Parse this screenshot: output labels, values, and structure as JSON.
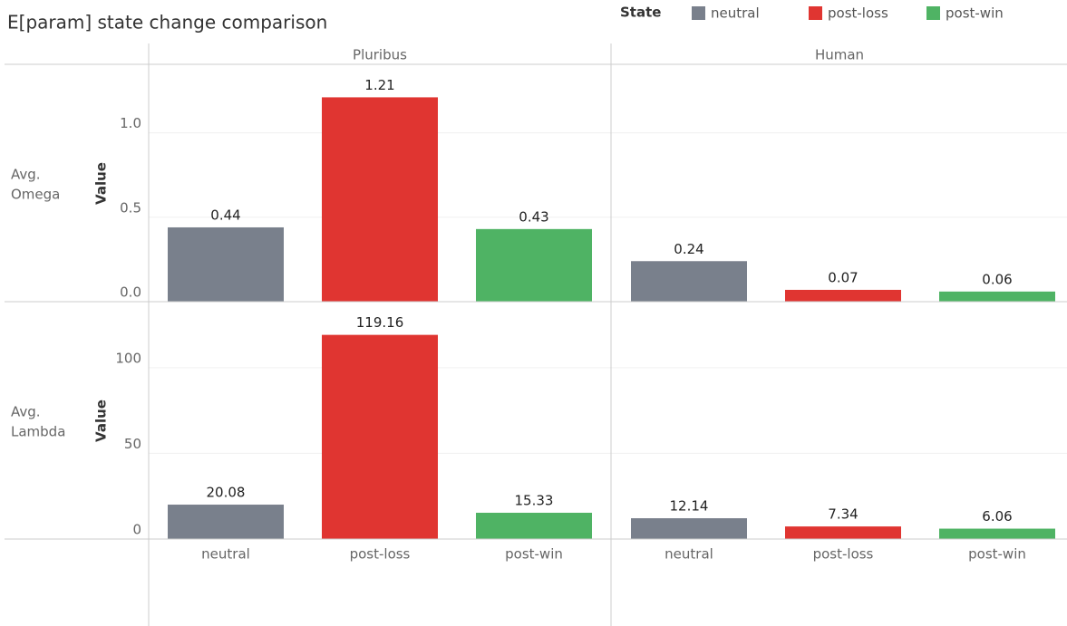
{
  "chart_data": {
    "type": "bar",
    "title": "E[param] state change comparison",
    "legend_title": "State",
    "categories": [
      "neutral",
      "post-loss",
      "post-win"
    ],
    "colors": [
      "#79808c",
      "#e03531",
      "#4fb364"
    ],
    "columns": [
      "Pluribus",
      "Human"
    ],
    "grid": true,
    "rows": [
      {
        "label": "Avg. Omega",
        "axis_label": "Value",
        "ylim": [
          0,
          1.4
        ],
        "yticks": [
          {
            "value": 0,
            "label": "0.0"
          },
          0.5,
          {
            "value": 1,
            "label": "1.0"
          }
        ],
        "values": [
          [
            0.44,
            1.21,
            0.43
          ],
          [
            0.24,
            0.07,
            0.06
          ]
        ]
      },
      {
        "label": "Avg. Lambda",
        "axis_label": "Value",
        "ylim": [
          0,
          138
        ],
        "yticks": [
          0,
          50,
          100
        ],
        "values": [
          [
            20.08,
            119.16,
            15.33
          ],
          [
            12.14,
            7.34,
            6.06
          ]
        ]
      }
    ]
  }
}
